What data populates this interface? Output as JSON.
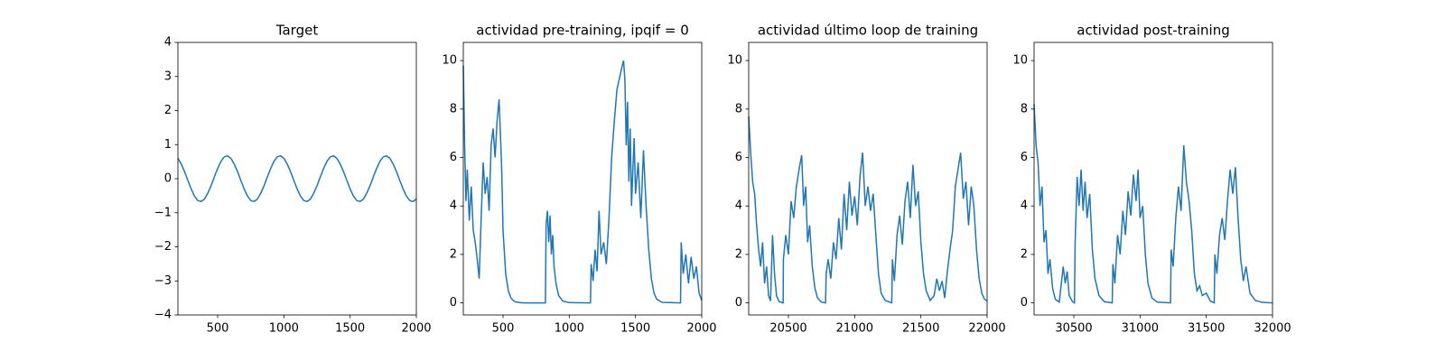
{
  "chart_data": [
    {
      "type": "line",
      "title": "Target",
      "x": [
        200,
        225,
        250,
        275,
        300,
        325,
        350,
        375,
        400,
        425,
        450,
        475,
        500,
        525,
        550,
        575,
        600,
        625,
        650,
        675,
        700,
        725,
        750,
        775,
        800,
        825,
        850,
        875,
        900,
        925,
        950,
        975,
        1000,
        1025,
        1050,
        1075,
        1100,
        1125,
        1150,
        1175,
        1200,
        1225,
        1250,
        1275,
        1300,
        1325,
        1350,
        1375,
        1400,
        1425,
        1450,
        1475,
        1500,
        1525,
        1550,
        1575,
        1600,
        1625,
        1650,
        1675,
        1700,
        1725,
        1750,
        1775,
        1800,
        1825,
        1850,
        1875,
        1900,
        1925,
        1950,
        1975,
        2000
      ],
      "series": [
        {
          "color": "#1f77b4",
          "values": [
            0.6,
            0.43,
            0.21,
            -0.05,
            -0.3,
            -0.51,
            -0.64,
            -0.67,
            -0.6,
            -0.43,
            -0.21,
            0.05,
            0.3,
            0.51,
            0.64,
            0.67,
            0.6,
            0.43,
            0.21,
            -0.05,
            -0.3,
            -0.51,
            -0.64,
            -0.67,
            -0.6,
            -0.43,
            -0.21,
            0.05,
            0.3,
            0.51,
            0.64,
            0.67,
            0.6,
            0.43,
            0.21,
            -0.05,
            -0.3,
            -0.51,
            -0.64,
            -0.67,
            -0.6,
            -0.43,
            -0.21,
            0.05,
            0.3,
            0.51,
            0.64,
            0.67,
            0.6,
            0.43,
            0.21,
            -0.05,
            -0.3,
            -0.51,
            -0.64,
            -0.67,
            -0.6,
            -0.43,
            -0.21,
            0.05,
            0.3,
            0.51,
            0.64,
            0.67,
            0.6,
            0.43,
            0.21,
            -0.05,
            -0.3,
            -0.51,
            -0.64,
            -0.67,
            -0.6
          ]
        }
      ],
      "xlim": [
        200,
        2000
      ],
      "xticks": [
        500,
        1000,
        1500,
        2000
      ],
      "ylim": [
        -4,
        4
      ],
      "yticks": [
        {
          "value": -4,
          "label": "−4"
        },
        {
          "value": -3,
          "label": "−3"
        },
        {
          "value": -2,
          "label": "−2"
        },
        {
          "value": -1,
          "label": "−1"
        },
        0,
        1,
        2,
        3,
        4
      ]
    },
    {
      "type": "line",
      "title": "actividad pre-training, ipqif = 0",
      "x": [
        200,
        210,
        220,
        230,
        245,
        260,
        275,
        290,
        305,
        320,
        335,
        350,
        365,
        380,
        395,
        410,
        425,
        440,
        455,
        470,
        480,
        490,
        500,
        520,
        540,
        560,
        580,
        600,
        650,
        820,
        825,
        835,
        845,
        855,
        865,
        875,
        885,
        900,
        920,
        950,
        1000,
        1160,
        1165,
        1180,
        1195,
        1210,
        1225,
        1240,
        1260,
        1280,
        1300,
        1320,
        1340,
        1360,
        1380,
        1400,
        1410,
        1420,
        1430,
        1440,
        1450,
        1460,
        1470,
        1480,
        1490,
        1500,
        1520,
        1540,
        1560,
        1580,
        1600,
        1620,
        1640,
        1660,
        1700,
        1840,
        1845,
        1860,
        1880,
        1900,
        1920,
        1940,
        1960,
        1980,
        2000
      ],
      "series": [
        {
          "color": "#1f77b4",
          "values": [
            9.8,
            6.5,
            4.2,
            5.5,
            3.4,
            4.8,
            3.0,
            2.5,
            1.8,
            1.0,
            3.5,
            5.8,
            4.5,
            5.2,
            3.8,
            6.5,
            7.2,
            6.0,
            7.5,
            8.4,
            7.0,
            5.5,
            3.0,
            1.2,
            0.5,
            0.2,
            0.08,
            0.03,
            0,
            0,
            3.2,
            3.8,
            2.5,
            3.6,
            2.0,
            2.8,
            1.5,
            0.8,
            0.3,
            0.08,
            0.01,
            0,
            1.6,
            0.9,
            2.2,
            1.3,
            3.8,
            2.0,
            2.5,
            1.6,
            3.5,
            6.0,
            7.5,
            8.8,
            9.3,
            9.8,
            10.0,
            9.2,
            6.5,
            8.3,
            5.0,
            7.2,
            4.0,
            5.5,
            6.8,
            4.5,
            5.8,
            3.5,
            6.3,
            4.0,
            2.2,
            1.0,
            0.4,
            0.15,
            0.02,
            0,
            2.5,
            1.2,
            2.0,
            0.8,
            1.9,
            1.0,
            1.5,
            0.4,
            0.1
          ]
        }
      ],
      "xlim": [
        200,
        2000
      ],
      "xticks": [
        500,
        1000,
        1500,
        2000
      ],
      "ylim": [
        -0.5,
        10.75
      ],
      "yticks": [
        0,
        2,
        4,
        6,
        8,
        10
      ]
    },
    {
      "type": "line",
      "title": "actividad último loop de training",
      "x": [
        20200,
        20215,
        20230,
        20245,
        20260,
        20275,
        20290,
        20305,
        20320,
        20335,
        20350,
        20365,
        20380,
        20395,
        20410,
        20430,
        20460,
        20462,
        20480,
        20500,
        20520,
        20540,
        20560,
        20580,
        20600,
        20615,
        20630,
        20645,
        20660,
        20680,
        20700,
        20720,
        20750,
        20780,
        20785,
        20800,
        20820,
        20840,
        20860,
        20880,
        20900,
        20920,
        20940,
        20960,
        20980,
        21000,
        21020,
        21040,
        21060,
        21080,
        21100,
        21120,
        21140,
        21160,
        21180,
        21200,
        21230,
        21280,
        21285,
        21300,
        21320,
        21340,
        21360,
        21380,
        21400,
        21420,
        21440,
        21460,
        21480,
        21500,
        21520,
        21540,
        21570,
        21600,
        21620,
        21640,
        21660,
        21680,
        21700,
        21720,
        21740,
        21760,
        21780,
        21800,
        21820,
        21840,
        21860,
        21880,
        21900,
        21920,
        21940,
        21960,
        21980,
        22000
      ],
      "series": [
        {
          "color": "#1f77b4",
          "values": [
            7.7,
            6.2,
            5.0,
            4.5,
            3.2,
            2.2,
            1.5,
            2.5,
            0.8,
            1.5,
            0.3,
            0.08,
            2.8,
            1.2,
            0.3,
            0.05,
            0,
            1.8,
            2.8,
            2.0,
            4.2,
            3.5,
            4.8,
            5.5,
            6.1,
            4.0,
            4.8,
            2.5,
            3.2,
            1.5,
            0.6,
            0.2,
            0.03,
            0,
            1.2,
            1.8,
            1.0,
            2.5,
            1.8,
            3.5,
            2.2,
            4.5,
            3.0,
            5.0,
            3.6,
            4.4,
            3.2,
            5.2,
            6.2,
            4.0,
            4.8,
            3.8,
            4.5,
            2.8,
            1.2,
            0.4,
            0.1,
            0,
            1.8,
            0.9,
            2.8,
            3.6,
            2.4,
            4.2,
            5.0,
            3.5,
            5.7,
            4.0,
            4.6,
            2.5,
            1.2,
            0.5,
            0.1,
            0.3,
            1.0,
            0.5,
            0.9,
            0.2,
            1.3,
            2.2,
            3.0,
            4.8,
            5.5,
            6.2,
            4.3,
            5.0,
            3.2,
            4.8,
            4.0,
            2.2,
            1.0,
            0.4,
            0.15,
            0.08
          ]
        }
      ],
      "xlim": [
        20200,
        22000
      ],
      "xticks": [
        20500,
        21000,
        21500,
        22000
      ],
      "ylim": [
        -0.5,
        10.75
      ],
      "yticks": [
        0,
        2,
        4,
        6,
        8,
        10
      ]
    },
    {
      "type": "line",
      "title": "actividad post-training",
      "x": [
        30200,
        30215,
        30230,
        30245,
        30260,
        30275,
        30290,
        30305,
        30320,
        30340,
        30360,
        30390,
        30420,
        30435,
        30450,
        30465,
        30490,
        30505,
        30510,
        30525,
        30540,
        30555,
        30570,
        30585,
        30600,
        30620,
        30640,
        30660,
        30690,
        30730,
        30790,
        30795,
        30810,
        30830,
        30850,
        30870,
        30890,
        30910,
        30930,
        30950,
        30970,
        30985,
        31000,
        31020,
        31040,
        31060,
        31090,
        31130,
        31230,
        31235,
        31250,
        31270,
        31290,
        31310,
        31330,
        31350,
        31370,
        31390,
        31410,
        31430,
        31450,
        31470,
        31500,
        31530,
        31560,
        31565,
        31580,
        31600,
        31620,
        31640,
        31660,
        31680,
        31700,
        31720,
        31740,
        31760,
        31780,
        31800,
        31830,
        31870,
        31920,
        32000
      ],
      "series": [
        {
          "color": "#1f77b4",
          "values": [
            8.2,
            6.5,
            5.8,
            4.0,
            4.8,
            2.5,
            3.0,
            1.2,
            1.8,
            0.6,
            0.15,
            0.03,
            1.5,
            0.8,
            1.3,
            0.3,
            0.05,
            0,
            2.5,
            5.2,
            4.0,
            5.5,
            3.8,
            5.0,
            3.5,
            4.5,
            2.2,
            1.0,
            0.3,
            0.05,
            0,
            1.6,
            0.8,
            2.8,
            2.0,
            3.8,
            2.8,
            4.6,
            3.6,
            5.3,
            4.2,
            5.5,
            3.5,
            4.0,
            2.0,
            0.8,
            0.2,
            0.03,
            0,
            2.2,
            1.5,
            3.5,
            4.8,
            3.8,
            6.5,
            5.0,
            4.2,
            3.0,
            1.2,
            0.5,
            0.7,
            0.3,
            0.4,
            0.08,
            0,
            2.0,
            1.2,
            2.8,
            3.5,
            2.6,
            4.2,
            5.5,
            4.5,
            5.6,
            3.5,
            1.8,
            0.9,
            1.5,
            0.4,
            0.1,
            0.02,
            0
          ]
        }
      ],
      "xlim": [
        30200,
        32000
      ],
      "xticks": [
        30500,
        31000,
        31500,
        32000
      ],
      "ylim": [
        -0.5,
        10.75
      ],
      "yticks": [
        0,
        2,
        4,
        6,
        8,
        10
      ]
    }
  ]
}
